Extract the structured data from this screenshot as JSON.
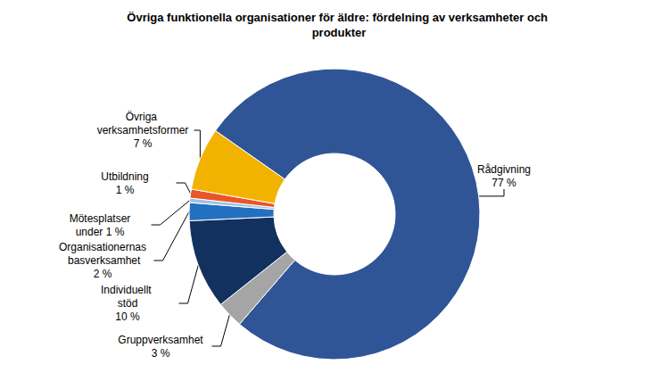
{
  "chart_data": {
    "type": "pie",
    "title": "Övriga funktionella organisationer för äldre: fördelning av verksamheter och produkter",
    "categories": [
      "Rådgivning",
      "Gruppverksamhet",
      "Individuellt stöd",
      "Organisationernas basverksamhet",
      "Mötesplatser",
      "Utbildning",
      "Övriga verksamhetsformer"
    ],
    "values": [
      77,
      3,
      10,
      2,
      0.5,
      1,
      7
    ],
    "value_labels": [
      "77 %",
      "3 %",
      "10 %",
      "2 %",
      "under 1 %",
      "1 %",
      "7 %"
    ],
    "colors": [
      "#2F5597",
      "#A5A5A5",
      "#12315F",
      "#2470C0",
      "#9DC3E6",
      "#E8562A",
      "#F2B200"
    ],
    "data_labels": true
  }
}
